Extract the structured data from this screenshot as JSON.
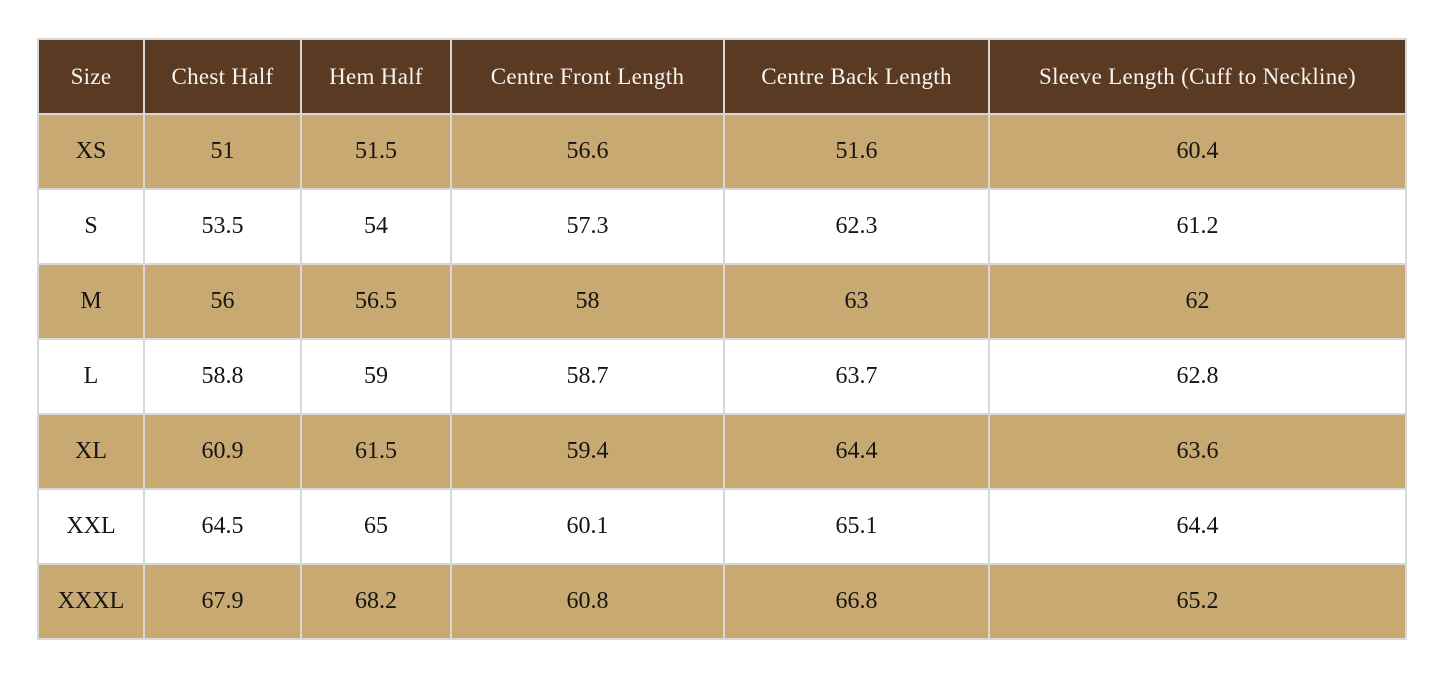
{
  "chart_data": {
    "type": "table",
    "columns": [
      "Size",
      "Chest Half",
      "Hem Half",
      "Centre Front Length",
      "Centre Back Length",
      "Sleeve Length (Cuff to Neckline)"
    ],
    "rows": [
      [
        "XS",
        51,
        51.5,
        56.6,
        51.6,
        60.4
      ],
      [
        "S",
        53.5,
        54,
        57.3,
        62.3,
        61.2
      ],
      [
        "M",
        56,
        56.5,
        58,
        63,
        62
      ],
      [
        "L",
        58.8,
        59,
        58.7,
        63.7,
        62.8
      ],
      [
        "XL",
        60.9,
        61.5,
        59.4,
        64.4,
        63.6
      ],
      [
        "XXL",
        64.5,
        65,
        60.1,
        65.1,
        64.4
      ],
      [
        "XXXL",
        67.9,
        68.2,
        60.8,
        66.8,
        65.2
      ]
    ]
  },
  "colors": {
    "header_bg": "#5a3a23",
    "header_text": "#f8f5f0",
    "row_alt_bg": "#c8a971",
    "row_bg": "#ffffff",
    "grid": "#d8d8d8",
    "body_text": "#151515"
  }
}
